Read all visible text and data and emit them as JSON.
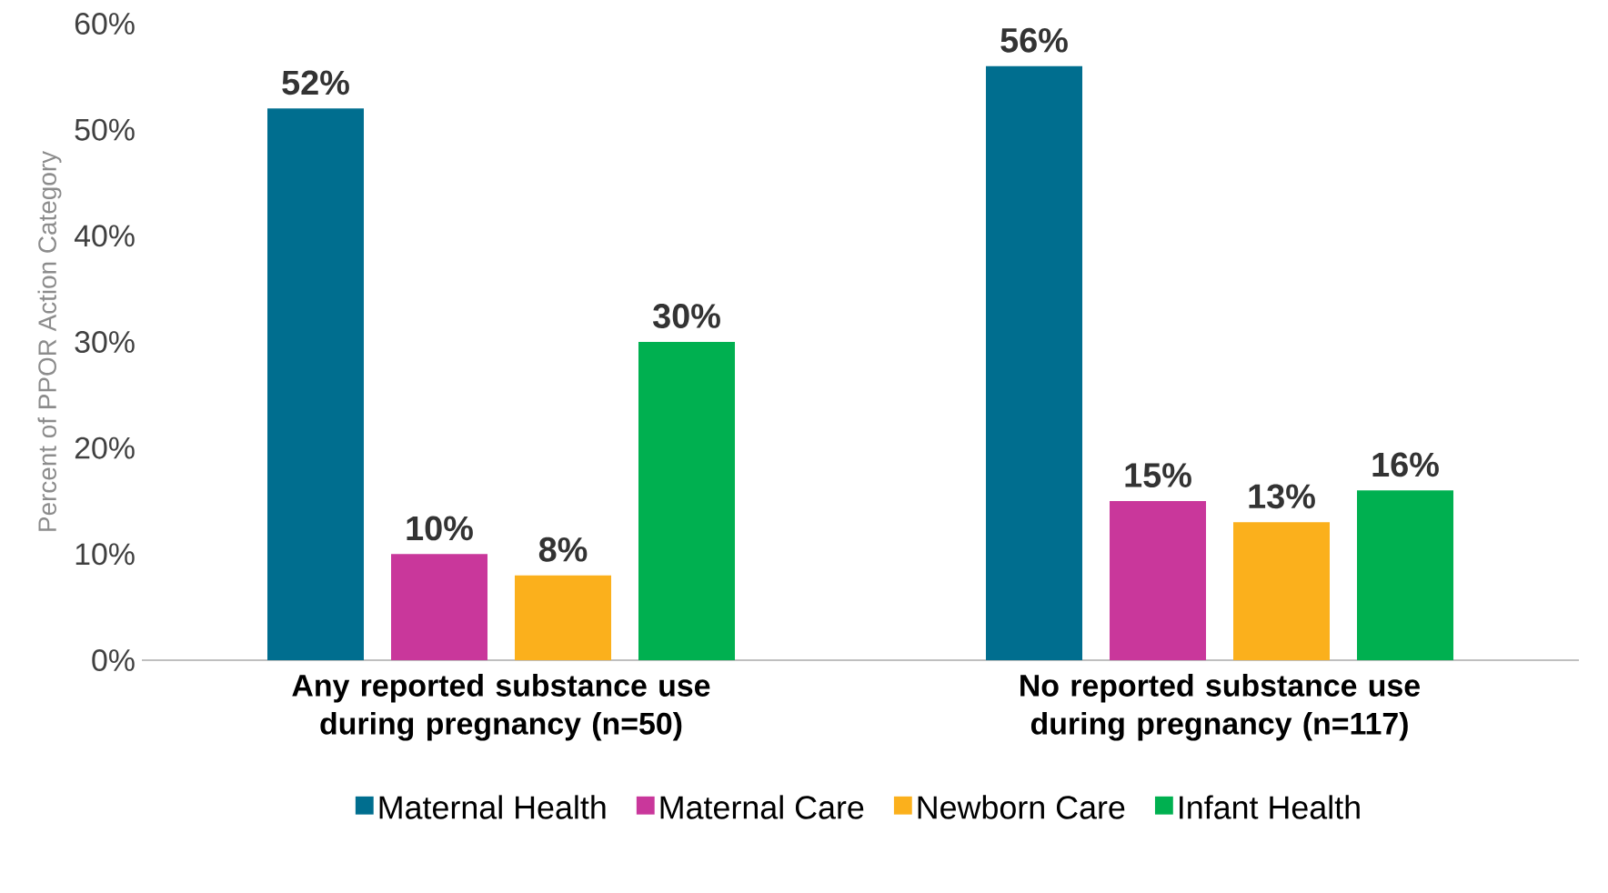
{
  "chart_data": {
    "type": "bar",
    "categories": [
      "Any reported substance use during pregnancy (n=50)",
      "No reported substance use during pregnancy (n=117)"
    ],
    "ylabel": "Percent of PPOR Action Category",
    "ylim": [
      0,
      60
    ],
    "yticks": [
      {
        "value": 0,
        "label": "0%"
      },
      {
        "value": 10,
        "label": "10%"
      },
      {
        "value": 20,
        "label": "20%"
      },
      {
        "value": 30,
        "label": "30%"
      },
      {
        "value": 40,
        "label": "40%"
      },
      {
        "value": 50,
        "label": "50%"
      },
      {
        "value": 60,
        "label": "60%"
      }
    ],
    "legend": "bottom",
    "grid": false,
    "series": [
      {
        "name": "Maternal Health",
        "color": "#006e8f",
        "values": [
          52,
          56
        ],
        "value_labels": [
          "52%",
          "56%"
        ]
      },
      {
        "name": "Maternal Care",
        "color": "#c9379b",
        "values": [
          10,
          15
        ],
        "value_labels": [
          "10%",
          "15%"
        ]
      },
      {
        "name": "Newborn Care",
        "color": "#fbb01c",
        "values": [
          8,
          13
        ],
        "value_labels": [
          "8%",
          "13%"
        ]
      },
      {
        "name": "Infant Health",
        "color": "#00b050",
        "values": [
          30,
          16
        ],
        "value_labels": [
          "30%",
          "16%"
        ]
      }
    ]
  }
}
